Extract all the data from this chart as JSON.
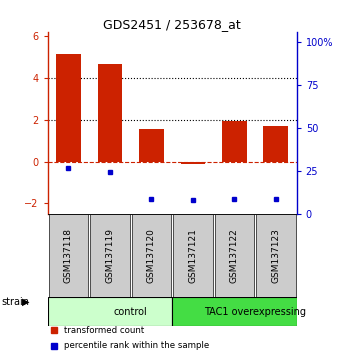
{
  "title": "GDS2451 / 253678_at",
  "samples": [
    "GSM137118",
    "GSM137119",
    "GSM137120",
    "GSM137121",
    "GSM137122",
    "GSM137123"
  ],
  "transformed_counts": [
    5.15,
    4.65,
    1.55,
    -0.12,
    1.95,
    1.7
  ],
  "percentile_ranks_left": [
    -0.3,
    -0.5,
    -1.8,
    -1.85,
    -1.8,
    -1.8
  ],
  "percentile_ranks_right": [
    20,
    15,
    5,
    4,
    5,
    5
  ],
  "bar_color": "#cc2200",
  "dot_color": "#0000cc",
  "ylim_left": [
    -2.5,
    6.2
  ],
  "ylim_right": [
    0,
    106
  ],
  "yticks_left": [
    -2,
    0,
    2,
    4,
    6
  ],
  "yticks_right": [
    0,
    25,
    50,
    75,
    100
  ],
  "yticklabels_right": [
    "0",
    "25",
    "50",
    "75",
    "100%"
  ],
  "hlines": [
    0,
    2,
    4
  ],
  "hline_styles": [
    "dashed",
    "dotted",
    "dotted"
  ],
  "hline_colors": [
    "#cc2200",
    "#000000",
    "#000000"
  ],
  "groups": [
    {
      "label": "control",
      "start": 0,
      "end": 3,
      "color": "#ccffcc"
    },
    {
      "label": "TAC1 overexpressing",
      "start": 3,
      "end": 6,
      "color": "#44dd44"
    }
  ],
  "strain_label": "strain",
  "legend_items": [
    {
      "color": "#cc2200",
      "label": "transformed count"
    },
    {
      "color": "#0000cc",
      "label": "percentile rank within the sample"
    }
  ],
  "bg_color": "#ffffff",
  "sample_box_color": "#cccccc",
  "sample_box_edge": "#333333"
}
